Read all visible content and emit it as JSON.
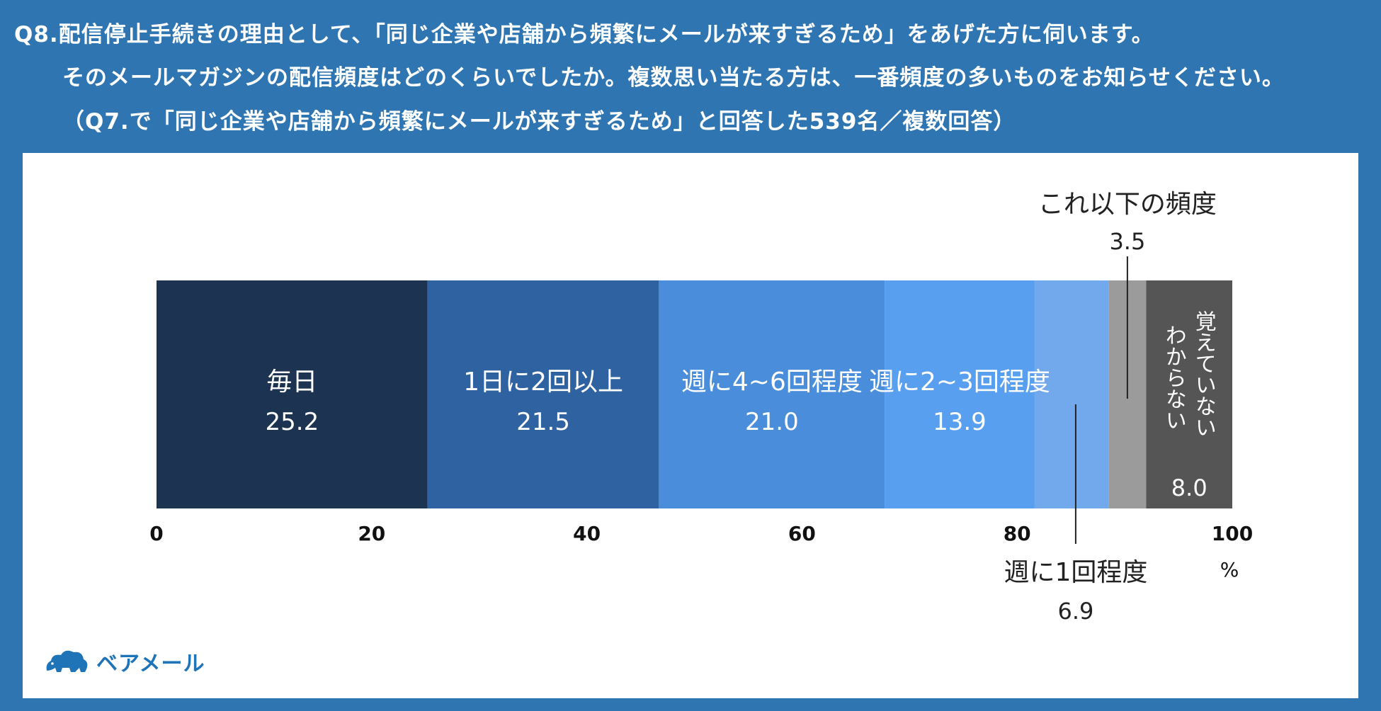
{
  "question": {
    "line1": "Q8.配信停止手続きの理由として、「同じ企業や店舗から頻繁にメールが来すぎるため」をあげた方に伺います。",
    "line2": "そのメールマガジンの配信頻度はどのくらいでしたか。複数思い当たる方は、一番頻度の多いものをお知らせください。",
    "line3": "（Q7.で「同じ企業や店舗から頻繁にメールが来すぎるため」と回答した539名／複数回答）"
  },
  "logo": {
    "text": "ベアメール",
    "icon": "bear-cloud-logo-icon"
  },
  "colors": {
    "header_bg": "#2e75b2",
    "seg1": "#1c3352",
    "seg2": "#2e62a1",
    "seg3": "#4a8edb",
    "seg4": "#589ff0",
    "seg5": "#71a9ec",
    "seg6": "#9b9b9b",
    "seg7": "#555555"
  },
  "chart_data": {
    "type": "bar",
    "orientation": "horizontal-stacked",
    "x_ticks": [
      "0",
      "20",
      "40",
      "60",
      "80",
      "100"
    ],
    "xlim": [
      0,
      100
    ],
    "unit": "%",
    "series": [
      {
        "name": "毎日",
        "value": 25.2,
        "value_label": "25.2"
      },
      {
        "name": "1日に2回以上",
        "value": 21.5,
        "value_label": "21.5"
      },
      {
        "name": "週に4~6回程度",
        "value": 21.0,
        "value_label": "21.0"
      },
      {
        "name": "週に2~3回程度",
        "value": 13.9,
        "value_label": "13.9"
      },
      {
        "name": "週に1回程度",
        "value": 6.9,
        "value_label": "6.9"
      },
      {
        "name": "これ以下の頻度",
        "value": 3.5,
        "value_label": "3.5"
      },
      {
        "name": "覚えていない わからない",
        "name_line1": "覚えていない",
        "name_line2": "わからない",
        "value": 8.0,
        "value_label": "8.0"
      }
    ]
  }
}
